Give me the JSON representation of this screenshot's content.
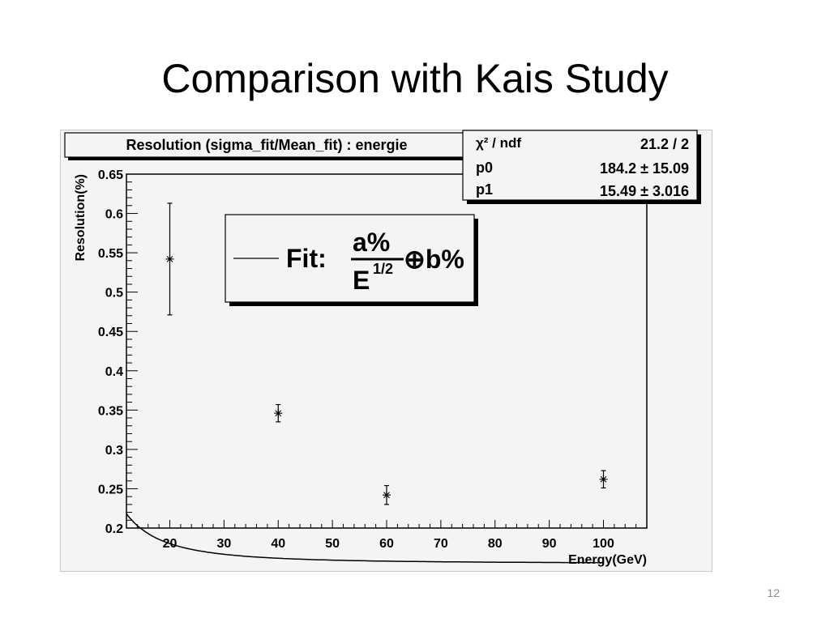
{
  "slide": {
    "title": "Comparison with Kais Study",
    "page_number": "12"
  },
  "chart_data": {
    "type": "scatter",
    "title": "Resolution (sigma_fit/Mean_fit) : energie",
    "xlabel": "Energy(GeV)",
    "ylabel": "Resolution(%)",
    "xlim": [
      12,
      108
    ],
    "ylim": [
      0.2,
      0.65
    ],
    "xticks": [
      "20",
      "30",
      "40",
      "50",
      "60",
      "70",
      "80",
      "90",
      "100"
    ],
    "yticks": [
      "0.2",
      "0.25",
      "0.3",
      "0.35",
      "0.4",
      "0.45",
      "0.5",
      "0.55",
      "0.6",
      "0.65"
    ],
    "grid": false,
    "points": [
      {
        "x": 20,
        "y": 0.542,
        "yerr": 0.071
      },
      {
        "x": 40,
        "y": 0.346,
        "yerr": 0.011
      },
      {
        "x": 60,
        "y": 0.242,
        "yerr": 0.012
      },
      {
        "x": 100,
        "y": 0.262,
        "yerr": 0.011
      }
    ],
    "fit": {
      "expression": "sqrt((p0/E)^2 + (p1)^2) / 100",
      "p0": 184.2,
      "p1": 15.49,
      "x_range": [
        12,
        100
      ]
    },
    "stats_box": {
      "rows": [
        {
          "name": "χ² / ndf",
          "value": "21.2 / 2"
        },
        {
          "name": "p0",
          "value": "184.2 ± 15.09"
        },
        {
          "name": "p1",
          "value": "15.49 ± 3.016"
        }
      ]
    },
    "legend": {
      "position": "top-center",
      "label": "Fit:",
      "numerator": "a%",
      "denominator_base": "E",
      "denominator_exp": "1/2",
      "tail": "⊕b%"
    }
  }
}
